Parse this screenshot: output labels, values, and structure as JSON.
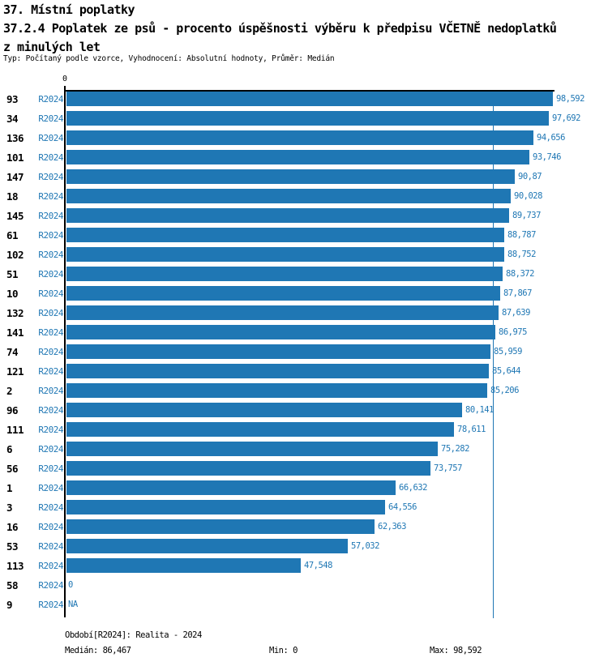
{
  "header": {
    "title_lines": [
      "37. Místní poplatky",
      "37.2.4 Poplatek ze psů - procento úspěšnosti výběru k předpisu VČETNĚ nedoplatků",
      "z minulých let"
    ],
    "subtitle": "Typ: Počítaný podle vzorce, Vyhodnocení: Absolutní hodnoty, Průměr: Medián"
  },
  "chart_data": {
    "type": "bar",
    "orientation": "horizontal",
    "title": "37.2.4 Poplatek ze psů - procento úspěšnosti výběru k předpisu VČETNĚ nedoplatků z minulých let",
    "xlabel": "",
    "ylabel": "",
    "xlim": [
      0,
      98.592
    ],
    "zero_tick_label": "0",
    "median_value": 86.467,
    "grid": false,
    "legend": "none",
    "colors": {
      "bar": "#1f77b4",
      "label_text": "#1f77b4",
      "median_line": "#1f77b4",
      "axis": "#000000"
    },
    "rows": [
      {
        "id": "93",
        "period": "R2024",
        "value": 98.592,
        "label": "98,592"
      },
      {
        "id": "34",
        "period": "R2024",
        "value": 97.692,
        "label": "97,692"
      },
      {
        "id": "136",
        "period": "R2024",
        "value": 94.656,
        "label": "94,656"
      },
      {
        "id": "101",
        "period": "R2024",
        "value": 93.746,
        "label": "93,746"
      },
      {
        "id": "147",
        "period": "R2024",
        "value": 90.87,
        "label": "90,87"
      },
      {
        "id": "18",
        "period": "R2024",
        "value": 90.028,
        "label": "90,028"
      },
      {
        "id": "145",
        "period": "R2024",
        "value": 89.737,
        "label": "89,737"
      },
      {
        "id": "61",
        "period": "R2024",
        "value": 88.787,
        "label": "88,787"
      },
      {
        "id": "102",
        "period": "R2024",
        "value": 88.752,
        "label": "88,752"
      },
      {
        "id": "51",
        "period": "R2024",
        "value": 88.372,
        "label": "88,372"
      },
      {
        "id": "10",
        "period": "R2024",
        "value": 87.867,
        "label": "87,867"
      },
      {
        "id": "132",
        "period": "R2024",
        "value": 87.639,
        "label": "87,639"
      },
      {
        "id": "141",
        "period": "R2024",
        "value": 86.975,
        "label": "86,975"
      },
      {
        "id": "74",
        "period": "R2024",
        "value": 85.959,
        "label": "85,959"
      },
      {
        "id": "121",
        "period": "R2024",
        "value": 85.644,
        "label": "85,644"
      },
      {
        "id": "2",
        "period": "R2024",
        "value": 85.206,
        "label": "85,206"
      },
      {
        "id": "96",
        "period": "R2024",
        "value": 80.141,
        "label": "80,141"
      },
      {
        "id": "111",
        "period": "R2024",
        "value": 78.611,
        "label": "78,611"
      },
      {
        "id": "6",
        "period": "R2024",
        "value": 75.282,
        "label": "75,282"
      },
      {
        "id": "56",
        "period": "R2024",
        "value": 73.757,
        "label": "73,757"
      },
      {
        "id": "1",
        "period": "R2024",
        "value": 66.632,
        "label": "66,632"
      },
      {
        "id": "3",
        "period": "R2024",
        "value": 64.556,
        "label": "64,556"
      },
      {
        "id": "16",
        "period": "R2024",
        "value": 62.363,
        "label": "62,363"
      },
      {
        "id": "53",
        "period": "R2024",
        "value": 57.032,
        "label": "57,032"
      },
      {
        "id": "113",
        "period": "R2024",
        "value": 47.548,
        "label": "47,548"
      },
      {
        "id": "58",
        "period": "R2024",
        "value": 0,
        "label": "0"
      },
      {
        "id": "9",
        "period": "R2024",
        "value": null,
        "label": "NA"
      }
    ]
  },
  "footer": {
    "period_info": "Období[R2024]: Realita - 2024",
    "median": "Medián: 86,467",
    "min": "Min: 0",
    "max": "Max: 98,592"
  }
}
